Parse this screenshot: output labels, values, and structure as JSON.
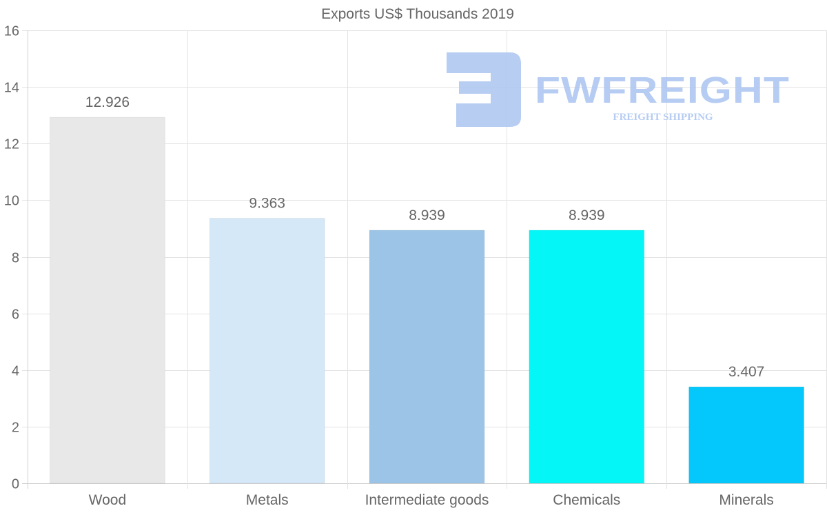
{
  "chart_data": {
    "type": "bar",
    "title": "Exports US$ Thousands 2019",
    "categories": [
      "Wood",
      "Metals",
      "Intermediate goods",
      "Chemicals",
      "Minerals"
    ],
    "values": [
      12.926,
      9.363,
      8.939,
      8.939,
      3.407
    ],
    "value_labels": [
      "12.926",
      "9.363",
      "8.939",
      "8.939",
      "3.407"
    ],
    "colors": [
      "#e8e8e8",
      "#d5e8f8",
      "#9bc4e7",
      "#05f6f6",
      "#04c8fb"
    ],
    "ylim": [
      0,
      16
    ],
    "yticks": [
      0,
      2,
      4,
      6,
      8,
      10,
      12,
      14,
      16
    ],
    "xlabel": "",
    "ylabel": "",
    "grid": true,
    "legend": "none"
  },
  "watermark": {
    "brand": "FWFREIGHT",
    "tagline": "FREIGHT SHIPPING",
    "color": "#aac4f0"
  }
}
